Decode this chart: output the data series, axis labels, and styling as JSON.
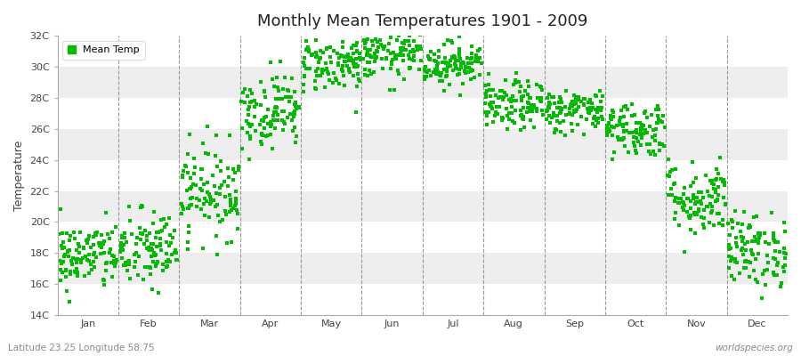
{
  "title": "Monthly Mean Temperatures 1901 - 2009",
  "ylabel": "Temperature",
  "ylim": [
    14,
    32
  ],
  "yticks": [
    14,
    16,
    18,
    20,
    22,
    24,
    26,
    28,
    30,
    32
  ],
  "ytick_labels": [
    "14C",
    "16C",
    "18C",
    "20C",
    "22C",
    "24C",
    "26C",
    "28C",
    "30C",
    "32C"
  ],
  "months": [
    "Jan",
    "Feb",
    "Mar",
    "Apr",
    "May",
    "Jun",
    "Jul",
    "Aug",
    "Sep",
    "Oct",
    "Nov",
    "Dec"
  ],
  "dot_color": "#00bb00",
  "bg_color": "#ffffff",
  "band_color_light": "#ffffff",
  "band_color_dark": "#eeeeee",
  "grid_color": "#999999",
  "legend_label": "Mean Temp",
  "footnote_left": "Latitude 23.25 Longitude 58.75",
  "footnote_right": "worldspecies.org",
  "monthly_means": [
    17.8,
    18.2,
    22.0,
    27.2,
    30.2,
    30.8,
    30.2,
    27.5,
    27.2,
    26.0,
    21.5,
    18.2
  ],
  "monthly_stds": [
    1.1,
    1.3,
    1.5,
    1.2,
    0.9,
    0.8,
    0.7,
    0.8,
    0.7,
    0.9,
    1.2,
    1.2
  ],
  "n_years": 109,
  "figsize": [
    9.0,
    4.0
  ],
  "dpi": 100
}
